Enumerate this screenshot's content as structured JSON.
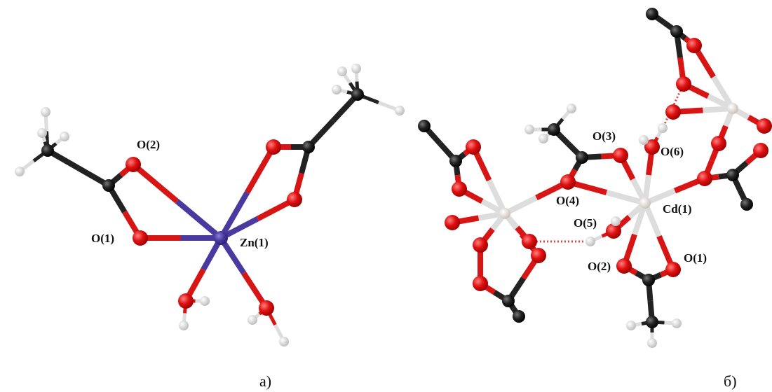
{
  "panel_a": {
    "labels": [
      "O(2)",
      "O(1)",
      "Zn(1)"
    ],
    "caption": "a)"
  },
  "panel_b": {
    "labels": [
      "O(3)",
      "O(6)",
      "O(4)",
      "Cd(1)",
      "O(5)",
      "O(2)",
      "O(1)"
    ],
    "caption": "б)"
  }
}
